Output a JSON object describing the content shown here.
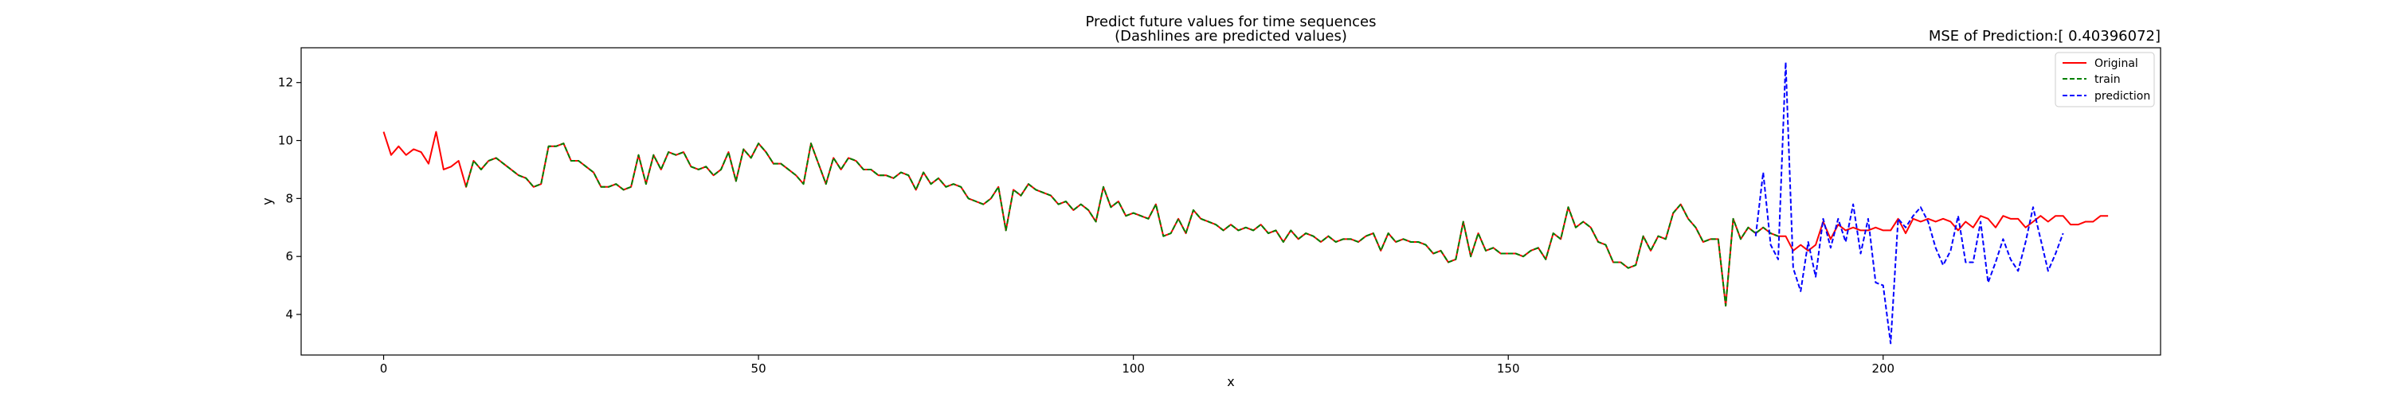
{
  "chart_data": {
    "type": "line",
    "title": "Predict future values for time sequences",
    "subtitle": "(Dashlines are predicted values)",
    "annotation": "MSE of Prediction:[ 0.40396072]",
    "xlabel": "x",
    "ylabel": "y",
    "xlim": [
      -11,
      237
    ],
    "ylim": [
      2.6,
      13.2
    ],
    "xticks": [
      0,
      50,
      100,
      150,
      200
    ],
    "yticks": [
      4,
      6,
      8,
      10,
      12
    ],
    "grid": false,
    "legend_position": "top-right",
    "series": [
      {
        "name": "Original",
        "color": "#ff0000",
        "style": "solid",
        "x_start": 0,
        "values": [
          10.3,
          9.5,
          9.8,
          9.5,
          9.7,
          9.6,
          9.2,
          10.3,
          9.0,
          9.1,
          9.3,
          8.4,
          9.3,
          9.0,
          9.3,
          9.4,
          9.2,
          9.0,
          8.8,
          8.7,
          8.4,
          8.5,
          9.8,
          9.8,
          9.9,
          9.3,
          9.3,
          9.1,
          8.9,
          8.4,
          8.4,
          8.5,
          8.3,
          8.4,
          9.5,
          8.5,
          9.5,
          9.0,
          9.6,
          9.5,
          9.6,
          9.1,
          9.0,
          9.1,
          8.8,
          9.0,
          9.6,
          8.6,
          9.7,
          9.4,
          9.9,
          9.6,
          9.2,
          9.2,
          9.0,
          8.8,
          8.5,
          9.9,
          9.2,
          8.5,
          9.4,
          9.0,
          9.4,
          9.3,
          9.0,
          9.0,
          8.8,
          8.8,
          8.7,
          8.9,
          8.8,
          8.3,
          8.9,
          8.5,
          8.7,
          8.4,
          8.5,
          8.4,
          8.0,
          7.9,
          7.8,
          8.0,
          8.4,
          6.9,
          8.3,
          8.1,
          8.5,
          8.3,
          8.2,
          8.1,
          7.8,
          7.9,
          7.6,
          7.8,
          7.6,
          7.2,
          8.4,
          7.7,
          7.9,
          7.4,
          7.5,
          7.4,
          7.3,
          7.8,
          6.7,
          6.8,
          7.3,
          6.8,
          7.6,
          7.3,
          7.2,
          7.1,
          6.9,
          7.1,
          6.9,
          7.0,
          6.9,
          7.1,
          6.8,
          6.9,
          6.5,
          6.9,
          6.6,
          6.8,
          6.7,
          6.5,
          6.7,
          6.5,
          6.6,
          6.6,
          6.5,
          6.7,
          6.8,
          6.2,
          6.8,
          6.5,
          6.6,
          6.5,
          6.5,
          6.4,
          6.1,
          6.2,
          5.8,
          5.9,
          7.2,
          6.0,
          6.8,
          6.2,
          6.3,
          6.1,
          6.1,
          6.1,
          6.0,
          6.2,
          6.3,
          5.9,
          6.8,
          6.6,
          7.7,
          7.0,
          7.2,
          7.0,
          6.5,
          6.4,
          5.8,
          5.8,
          5.6,
          5.7,
          6.7,
          6.2,
          6.7,
          6.6,
          7.5,
          7.8,
          7.3,
          7.0,
          6.5,
          6.6,
          6.6,
          4.3,
          7.3,
          6.6,
          7.0,
          6.8,
          7.0,
          6.8,
          6.7,
          6.7,
          6.2,
          6.4,
          6.2,
          6.4,
          7.2,
          6.6,
          7.1,
          6.9,
          7.0,
          6.9,
          6.9,
          7.0,
          6.9,
          6.9,
          7.3,
          6.8,
          7.3,
          7.2,
          7.3,
          7.2,
          7.3,
          7.2,
          6.9,
          7.2,
          7.0,
          7.4,
          7.3,
          7.0,
          7.4,
          7.3,
          7.3,
          7.0,
          7.2,
          7.4,
          7.2,
          7.4,
          7.4,
          7.1,
          7.1,
          7.2,
          7.2,
          7.4,
          7.4
        ]
      },
      {
        "name": "train",
        "color": "#008000",
        "style": "dashed",
        "x_start": 11,
        "values": [
          8.4,
          9.3,
          9.0,
          9.3,
          9.4,
          9.2,
          9.0,
          8.8,
          8.7,
          8.4,
          8.5,
          9.8,
          9.8,
          9.9,
          9.3,
          9.3,
          9.1,
          8.9,
          8.4,
          8.4,
          8.5,
          8.3,
          8.4,
          9.5,
          8.5,
          9.5,
          9.0,
          9.6,
          9.5,
          9.6,
          9.1,
          9.0,
          9.1,
          8.8,
          9.0,
          9.6,
          8.6,
          9.7,
          9.4,
          9.9,
          9.6,
          9.2,
          9.2,
          9.0,
          8.8,
          8.5,
          9.9,
          9.2,
          8.5,
          9.4,
          9.0,
          9.4,
          9.3,
          9.0,
          9.0,
          8.8,
          8.8,
          8.7,
          8.9,
          8.8,
          8.3,
          8.9,
          8.5,
          8.7,
          8.4,
          8.5,
          8.4,
          8.0,
          7.9,
          7.8,
          8.0,
          8.4,
          6.9,
          8.3,
          8.1,
          8.5,
          8.3,
          8.2,
          8.1,
          7.8,
          7.9,
          7.6,
          7.8,
          7.6,
          7.2,
          8.4,
          7.7,
          7.9,
          7.4,
          7.5,
          7.4,
          7.3,
          7.8,
          6.7,
          6.8,
          7.3,
          6.8,
          7.6,
          7.3,
          7.2,
          7.1,
          6.9,
          7.1,
          6.9,
          7.0,
          6.9,
          7.1,
          6.8,
          6.9,
          6.5,
          6.9,
          6.6,
          6.8,
          6.7,
          6.5,
          6.7,
          6.5,
          6.6,
          6.6,
          6.5,
          6.7,
          6.8,
          6.2,
          6.8,
          6.5,
          6.6,
          6.5,
          6.5,
          6.4,
          6.1,
          6.2,
          5.8,
          5.9,
          7.2,
          6.0,
          6.8,
          6.2,
          6.3,
          6.1,
          6.1,
          6.1,
          6.0,
          6.2,
          6.3,
          5.9,
          6.8,
          6.6,
          7.7,
          7.0,
          7.2,
          7.0,
          6.5,
          6.4,
          5.8,
          5.8,
          5.6,
          5.7,
          6.7,
          6.2,
          6.7,
          6.6,
          7.5,
          7.8,
          7.3,
          7.0,
          6.5,
          6.6,
          6.6,
          4.3,
          7.3,
          6.6,
          7.0,
          6.8,
          7.0,
          6.8,
          6.7
        ]
      },
      {
        "name": "prediction",
        "color": "#0000ff",
        "style": "dashed",
        "x_start": 183,
        "values": [
          6.7,
          8.9,
          6.4,
          5.9,
          12.7,
          5.6,
          4.8,
          6.5,
          5.3,
          7.3,
          6.3,
          7.3,
          6.5,
          7.8,
          6.1,
          7.3,
          5.1,
          5.0,
          3.0,
          7.3,
          7.0,
          7.4,
          7.7,
          7.2,
          6.3,
          5.7,
          6.2,
          7.4,
          5.8,
          5.8,
          7.2,
          5.1,
          5.8,
          6.6,
          5.9,
          5.5,
          6.5,
          7.7,
          6.6,
          5.5,
          6.1,
          6.8
        ]
      }
    ]
  }
}
